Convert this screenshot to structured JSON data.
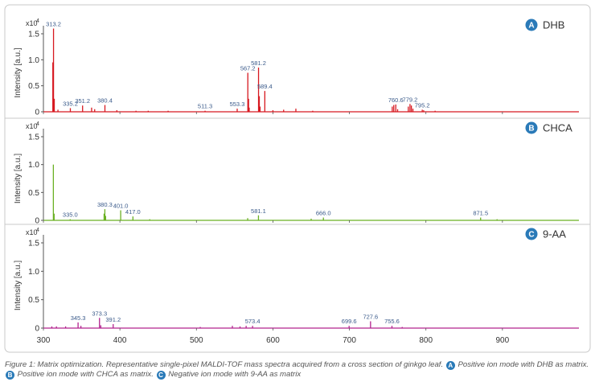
{
  "chart_data": [
    {
      "type": "line",
      "id": "A",
      "badge": "A",
      "label": "DHB",
      "color": "#d71920",
      "ylabel": "Intensity [a.u.]",
      "scale_label": "x10",
      "scale_exp": "4",
      "xlim": [
        300,
        1000
      ],
      "ylim": [
        0,
        1.7
      ],
      "yticks": [
        0,
        0.5,
        1.0,
        1.5
      ],
      "ytick_labels": [
        "0",
        "0.5",
        "1.0",
        "1.5"
      ],
      "peaks": [
        {
          "mz": 313.2,
          "i": 1.6,
          "label": "313.2"
        },
        {
          "mz": 312.3,
          "i": 0.95
        },
        {
          "mz": 314.2,
          "i": 0.25
        },
        {
          "mz": 319.0,
          "i": 0.04
        },
        {
          "mz": 335.2,
          "i": 0.07,
          "label": "335.2"
        },
        {
          "mz": 351.2,
          "i": 0.12,
          "label": "351.2"
        },
        {
          "mz": 363.0,
          "i": 0.08
        },
        {
          "mz": 367.0,
          "i": 0.05
        },
        {
          "mz": 380.4,
          "i": 0.13,
          "label": "380.4"
        },
        {
          "mz": 396.0,
          "i": 0.03
        },
        {
          "mz": 421.0,
          "i": 0.02
        },
        {
          "mz": 437.0,
          "i": 0.02
        },
        {
          "mz": 463.0,
          "i": 0.02
        },
        {
          "mz": 511.3,
          "i": 0.02,
          "label": "511.3"
        },
        {
          "mz": 553.3,
          "i": 0.06,
          "label": "553.3"
        },
        {
          "mz": 567.2,
          "i": 0.75,
          "label": "567.2"
        },
        {
          "mz": 568.2,
          "i": 0.25
        },
        {
          "mz": 569.0,
          "i": 0.08
        },
        {
          "mz": 581.2,
          "i": 0.85,
          "label": "581.2"
        },
        {
          "mz": 582.2,
          "i": 0.3
        },
        {
          "mz": 583.2,
          "i": 0.1
        },
        {
          "mz": 589.4,
          "i": 0.4,
          "label": "589.4"
        },
        {
          "mz": 600.0,
          "i": 0.03
        },
        {
          "mz": 614.0,
          "i": 0.04
        },
        {
          "mz": 630.0,
          "i": 0.06
        },
        {
          "mz": 652.0,
          "i": 0.02
        },
        {
          "mz": 756.0,
          "i": 0.1
        },
        {
          "mz": 758.0,
          "i": 0.13
        },
        {
          "mz": 760.6,
          "i": 0.14,
          "label": "760.6"
        },
        {
          "mz": 763.0,
          "i": 0.05
        },
        {
          "mz": 777.0,
          "i": 0.1
        },
        {
          "mz": 779.2,
          "i": 0.15,
          "label": "779.2"
        },
        {
          "mz": 781.0,
          "i": 0.12
        },
        {
          "mz": 783.0,
          "i": 0.06
        },
        {
          "mz": 795.2,
          "i": 0.04,
          "label": "795.2"
        },
        {
          "mz": 797.0,
          "i": 0.03
        },
        {
          "mz": 812.0,
          "i": 0.02
        }
      ]
    },
    {
      "type": "line",
      "id": "B",
      "badge": "B",
      "label": "CHCA",
      "color": "#6ab023",
      "ylabel": "Intensity [a.u.]",
      "scale_label": "x10",
      "scale_exp": "4",
      "xlim": [
        300,
        1000
      ],
      "ylim": [
        0,
        1.7
      ],
      "yticks": [
        0,
        0.5,
        1.0,
        1.5
      ],
      "ytick_labels": [
        "0",
        "0.5",
        "1.0",
        "1.5"
      ],
      "peaks": [
        {
          "mz": 313.0,
          "i": 1.0
        },
        {
          "mz": 314.0,
          "i": 0.12
        },
        {
          "mz": 335.0,
          "i": 0.02,
          "label": "335.0"
        },
        {
          "mz": 379.3,
          "i": 0.12
        },
        {
          "mz": 380.3,
          "i": 0.2,
          "label": "380.3"
        },
        {
          "mz": 381.3,
          "i": 0.08
        },
        {
          "mz": 401.0,
          "i": 0.18,
          "label": "401.0"
        },
        {
          "mz": 417.0,
          "i": 0.07,
          "label": "417.0"
        },
        {
          "mz": 439.0,
          "i": 0.02
        },
        {
          "mz": 567.0,
          "i": 0.04
        },
        {
          "mz": 581.1,
          "i": 0.09,
          "label": "581.1"
        },
        {
          "mz": 650.0,
          "i": 0.03
        },
        {
          "mz": 666.0,
          "i": 0.05,
          "label": "666.0"
        },
        {
          "mz": 871.5,
          "i": 0.05,
          "label": "871.5"
        },
        {
          "mz": 893.0,
          "i": 0.02
        }
      ]
    },
    {
      "type": "line",
      "id": "C",
      "badge": "C",
      "label": "9-AA",
      "color": "#b2238e",
      "ylabel": "Intensity [a.u.]",
      "scale_label": "x10",
      "scale_exp": "4",
      "xlim": [
        300,
        1000
      ],
      "ylim": [
        0,
        1.7
      ],
      "yticks": [
        0,
        0.5,
        1.0,
        1.5
      ],
      "ytick_labels": [
        "0",
        "0.5",
        "1.0",
        "1.5"
      ],
      "xlabel": "",
      "xticks": [
        300,
        400,
        500,
        600,
        700,
        800,
        900
      ],
      "xtick_labels": [
        "300",
        "400",
        "500",
        "600",
        "700",
        "800",
        "900"
      ],
      "peaks": [
        {
          "mz": 311.0,
          "i": 0.03
        },
        {
          "mz": 317.0,
          "i": 0.03
        },
        {
          "mz": 329.0,
          "i": 0.03
        },
        {
          "mz": 345.3,
          "i": 0.1,
          "label": "345.3"
        },
        {
          "mz": 349.0,
          "i": 0.04
        },
        {
          "mz": 373.3,
          "i": 0.18,
          "label": "373.3"
        },
        {
          "mz": 375.0,
          "i": 0.05
        },
        {
          "mz": 391.2,
          "i": 0.07,
          "label": "391.2"
        },
        {
          "mz": 505.0,
          "i": 0.02
        },
        {
          "mz": 547.0,
          "i": 0.04
        },
        {
          "mz": 557.0,
          "i": 0.03
        },
        {
          "mz": 565.0,
          "i": 0.04
        },
        {
          "mz": 573.4,
          "i": 0.04,
          "label": "573.4"
        },
        {
          "mz": 699.6,
          "i": 0.04,
          "label": "699.6"
        },
        {
          "mz": 727.6,
          "i": 0.12,
          "label": "727.6"
        },
        {
          "mz": 755.6,
          "i": 0.04,
          "label": "755.6"
        },
        {
          "mz": 769.0,
          "i": 0.02
        }
      ]
    }
  ],
  "caption": {
    "part1": "Figure 1: Matrix optimization. Representative single-pixel MALDI-TOF mass spectra acquired from a cross section of ginkgo leaf.",
    "badge_a": "A",
    "part2": "Positive ion mode with DHB as matrix.",
    "badge_b": "B",
    "part3": "Positive ion mode with CHCA as matrix.",
    "badge_c": "C",
    "part4": "Negative ion mode with 9-AA as matrix"
  },
  "colors": {
    "badge": "#2a7ab8",
    "frame": "#c9c9c9",
    "axis": "#555555"
  }
}
